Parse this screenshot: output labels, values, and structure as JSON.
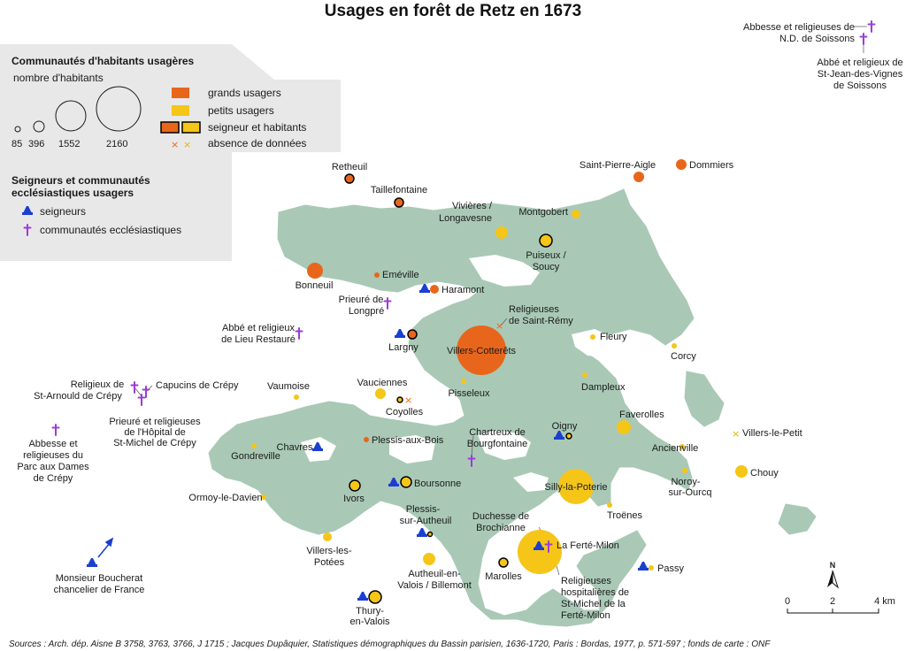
{
  "title": "Usages en forêt de Retz en 1673",
  "legend": {
    "section1_title": "Communautés d'habitants usagères",
    "size_title": "nombre d'habitants",
    "sizes": [
      "85",
      "396",
      "1552",
      "2160"
    ],
    "grands": "grands usagers",
    "petits": "petits usagers",
    "seigneur_hab": "seigneur et habitants",
    "absence": "absence de données",
    "section2_title_1": "Seigneurs et communautés",
    "section2_title_2": "ecclésiastiques usagers",
    "seigneurs": "seigneurs",
    "ecclesiastiques": "communautés ecclésiastiques"
  },
  "colors": {
    "grand": "#e8661c",
    "petit": "#f5c518",
    "forest": "#a9c9b6",
    "seigneur": "#1a3fd1",
    "eccl": "#9b3dd6",
    "legend_bg": "#e8e8e8"
  },
  "scale": {
    "zero": "0",
    "two": "2",
    "four": "4 km"
  },
  "north": "N",
  "source": "Sources : Arch. dép. Aisne B 3758, 3763, 3766, J 1715 ; Jacques Dupâquier, Statistiques démographiques du Bassin parisien, 1636-1720, Paris : Bordas, 1977, p. 571-597 ; fonds de carte : ONF",
  "places": {
    "retheuil": "Retheuil",
    "taillefontaine": "Taillefontaine",
    "saint_pierre_aigle": "Saint-Pierre-Aigle",
    "dommiers": "Dommiers",
    "montgobert": "Montgobert",
    "vivieres_1": "Vivières /",
    "vivieres_2": "Longavesne",
    "puiseux_1": "Puiseux /",
    "puiseux_2": "Soucy",
    "bonneuil": "Bonneuil",
    "emeville": "Eméville",
    "haramont": "Haramont",
    "prieure_longpre_1": "Prieuré de",
    "prieure_longpre_2": "Longpré",
    "religieuses_st_remy_1": "Religieuses",
    "religieuses_st_remy_2": "de Saint-Rémy",
    "abbe_lieu_1": "Abbé et religieux",
    "abbe_lieu_2": "de Lieu Restauré",
    "largny": "Largny",
    "villers_cotterets": "Villers-Cotterêts",
    "fleury": "Fleury",
    "corcy": "Corcy",
    "religieux_st_arnould_1": "Religieux de",
    "religieux_st_arnould_2": "St-Arnould de Crépy",
    "capucins": "Capucins de Crépy",
    "vaumoise": "Vaumoise",
    "vauciennes": "Vauciennes",
    "pisseleux": "Pisseleux",
    "dampleux": "Dampleux",
    "prieure_hopital_1": "Prieuré et religieuses",
    "prieure_hopital_2": "de l'Hôpital de",
    "prieure_hopital_3": "St-Michel de Crépy",
    "coyolles": "Coyolles",
    "oigny": "Oigny",
    "faverolles": "Faverolles",
    "abbesse_parc_1": "Abbesse et",
    "abbesse_parc_2": "religieuses du",
    "abbesse_parc_3": "Parc aux Dames",
    "abbesse_parc_4": "de Crépy",
    "chartreux_1": "Chartreux de",
    "chartreux_2": "Bourgfontaine",
    "villers_le_petit": "Villers-le-Petit",
    "chavres": "Chavres",
    "plessis_aux_bois": "Plessis-aux-Bois",
    "ancienville": "Ancienville",
    "gondreville": "Gondreville",
    "chouy": "Chouy",
    "noroy_1": "Noroy-",
    "noroy_2": "sur-Ourcq",
    "boursonne": "Boursonne",
    "silly": "Silly-la-Poterie",
    "ormoy": "Ormoy-le-Davien",
    "ivors": "Ivors",
    "troenes": "Troënes",
    "plessis_autheuil_1": "Plessis-",
    "plessis_autheuil_2": "sur-Autheuil",
    "duchesse_1": "Duchesse de",
    "duchesse_2": "Brochianne",
    "villers_potees_1": "Villers-les-",
    "villers_potees_2": "Potées",
    "la_ferte_milon": "La Ferté-Milon",
    "passy": "Passy",
    "bouchera_1": "Monsieur Boucherat",
    "bouchera_2": "chancelier de France",
    "autheuil_1": "Autheuil-en-",
    "autheuil_2": "Valois / Billemont",
    "marolles": "Marolles",
    "hospitalieres_1": "Religieuses",
    "hospitalieres_2": "hospitalières de",
    "hospitalieres_3": "St-Michel de la",
    "hospitalieres_4": "Ferté-Milon",
    "thury_1": "Thury-",
    "thury_2": "en-Valois",
    "abbesse_soissons_1": "Abbesse et religieuses de",
    "abbesse_soissons_2": "N.D. de Soissons",
    "abbe_stjean_1": "Abbé et religieux de",
    "abbe_stjean_2": "St-Jean-des-Vignes",
    "abbe_stjean_3": "de Soissons"
  }
}
